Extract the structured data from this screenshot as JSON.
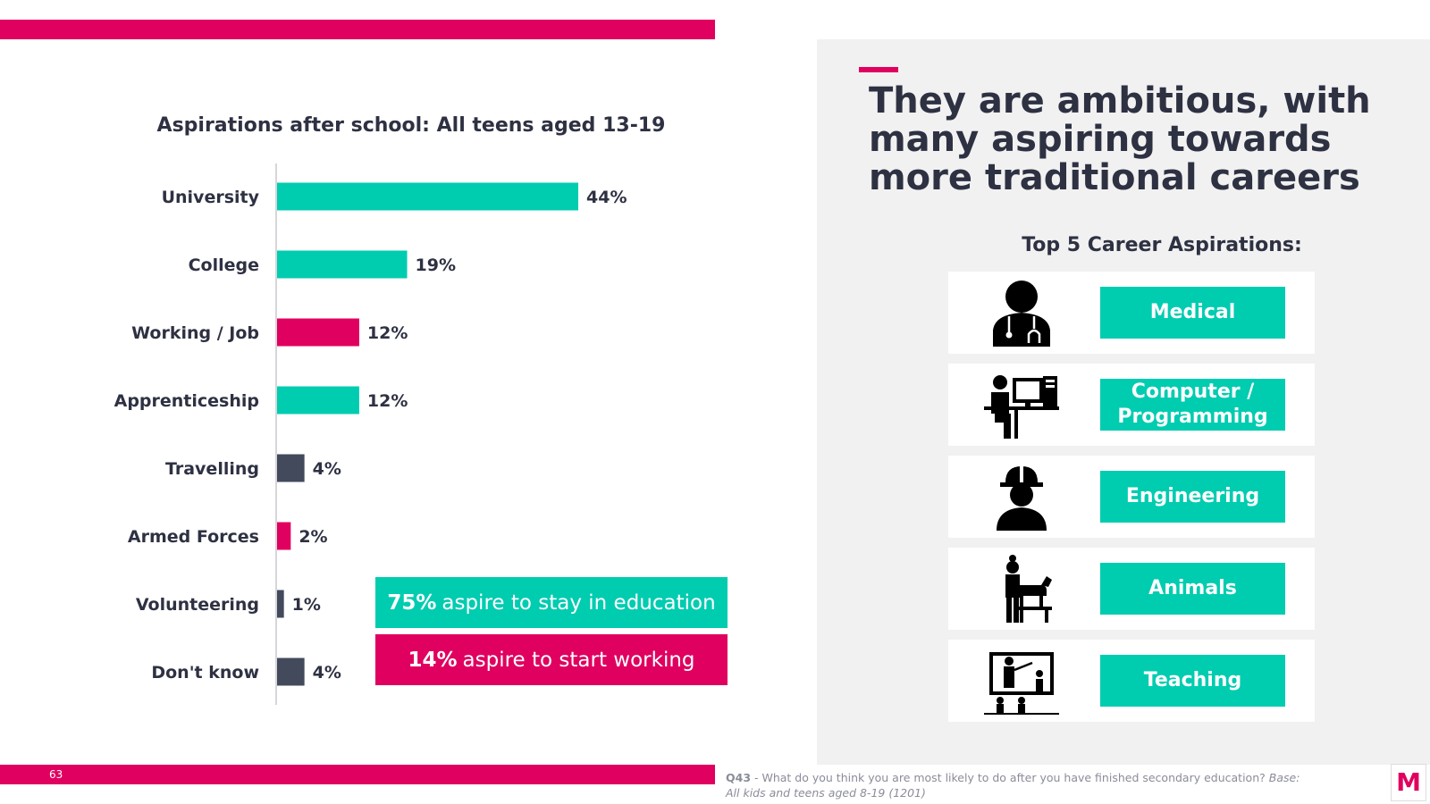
{
  "slide": {
    "page_number": "63",
    "headline": "They are ambitious, with many aspiring towards more traditional careers"
  },
  "chart_data": {
    "type": "bar",
    "orientation": "horizontal",
    "title": "Aspirations after school:  All teens aged 13-19",
    "categories": [
      "University",
      "College",
      "Working / Job",
      "Apprenticeship",
      "Travelling",
      "Armed Forces",
      "Volunteering",
      "Don't know"
    ],
    "values": [
      44,
      19,
      12,
      12,
      4,
      2,
      1,
      4
    ],
    "value_labels": [
      "44%",
      "19%",
      "12%",
      "12%",
      "4%",
      "2%",
      "1%",
      "4%"
    ],
    "bar_colors": [
      "#00ccb0",
      "#00ccb0",
      "#e0005f",
      "#00ccb0",
      "#424a5c",
      "#e0005f",
      "#424a5c",
      "#424a5c"
    ],
    "xlim": [
      0,
      47
    ],
    "grid": false,
    "legend": "none"
  },
  "callouts": {
    "education": {
      "value": "75%",
      "text": "aspire to stay in education"
    },
    "working": {
      "value": "14%",
      "text": "aspire to start working"
    }
  },
  "careers": {
    "title": "Top 5 Career Aspirations:",
    "items": [
      {
        "label": "Medical",
        "icon": "doctor-icon"
      },
      {
        "label": "Computer /\nProgramming",
        "icon": "computer-user-icon"
      },
      {
        "label": "Engineering",
        "icon": "engineer-icon"
      },
      {
        "label": "Animals",
        "icon": "vet-icon"
      },
      {
        "label": "Teaching",
        "icon": "teacher-icon"
      }
    ]
  },
  "footnote": {
    "question": "Q43",
    "text": " - What do you think you are most likely to do after you have finished secondary education? ",
    "base": "Base: All kids and teens aged 8-19 (1201)"
  },
  "logo": {
    "letter": "M"
  },
  "colors": {
    "accent_pink": "#e0005f",
    "accent_teal": "#00ccb0",
    "dark_slate": "#424a5c",
    "text_dark": "#2e3142",
    "panel_gray": "#f1f1f1"
  }
}
